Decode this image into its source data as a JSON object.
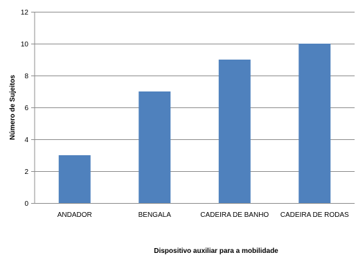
{
  "chart_data": {
    "type": "bar",
    "categories": [
      "ANDADOR",
      "BENGALA",
      "CADEIRA DE BANHO",
      "CADEIRA DE RODAS"
    ],
    "values": [
      3,
      7,
      9,
      10
    ],
    "title": "",
    "xlabel": "Dispositivo auxiliar para a mobilidade",
    "ylabel": "Número de Sujeitos",
    "ylim": [
      0,
      12
    ],
    "yticks": [
      0,
      2,
      4,
      6,
      8,
      10,
      12
    ],
    "grid": true,
    "legend": "none",
    "bar_color": "#4F81BD",
    "grid_color": "#8C8C8C"
  }
}
